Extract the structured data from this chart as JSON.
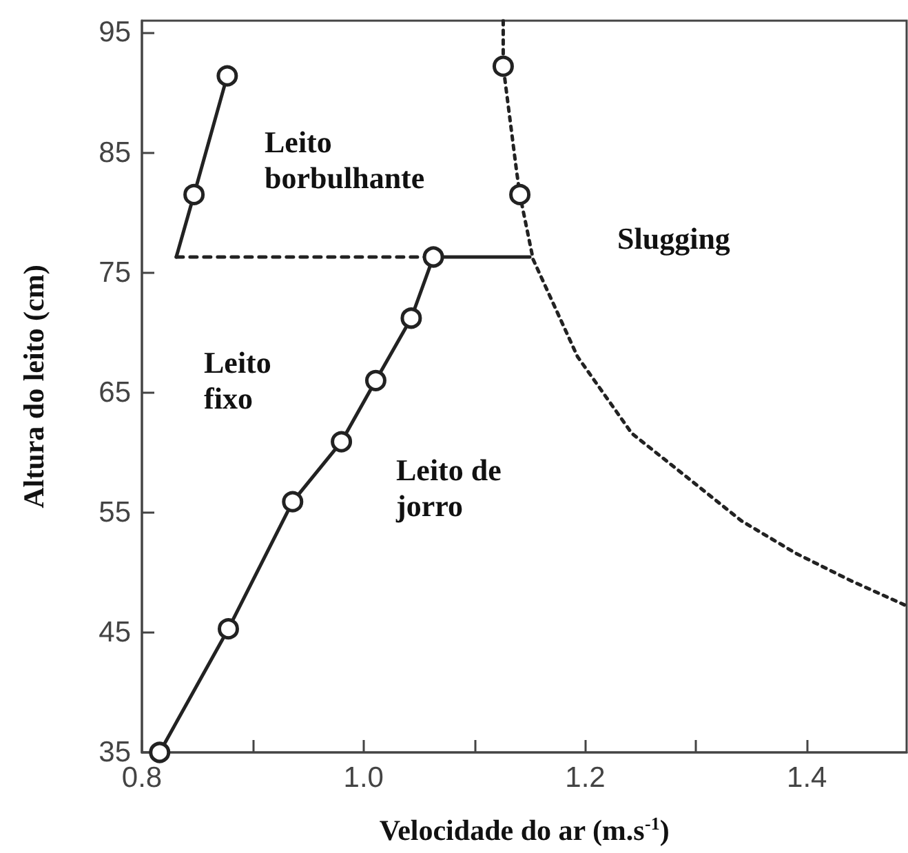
{
  "chart_data": {
    "type": "line",
    "xlabel": "Velocidade do ar (m.s$^{-1}$)",
    "ylabel": "Altura do leito (cm)",
    "xlim": [
      0.8,
      1.49
    ],
    "xticks": [
      {
        "value": 0.8,
        "label": "0.8"
      },
      {
        "value": 0.9,
        "label": null
      },
      {
        "value": 1.0,
        "label": "1.0"
      },
      {
        "value": 1.1,
        "label": null
      },
      {
        "value": 1.2,
        "label": "1.2"
      },
      {
        "value": 1.3,
        "label": null
      },
      {
        "value": 1.4,
        "label": "1.4"
      }
    ],
    "ylim": [
      35,
      96
    ],
    "yticks": [
      35,
      45,
      55,
      65,
      75,
      85,
      95
    ],
    "grid": false,
    "annotations": [
      "Leito borbulhante",
      "Leito fixo",
      "Leito de jorro",
      "Slugging"
    ],
    "series": [
      {
        "color": "#222222",
        "line_style": "solid",
        "marker": "none",
        "x": [
          0.816,
          0.878,
          0.936,
          0.98,
          1.011,
          1.043,
          1.063,
          1.15
        ],
        "values": [
          35,
          45.3,
          55.9,
          60.9,
          66.0,
          71.2,
          76.3,
          76.3
        ]
      },
      {
        "color": "#222222",
        "line_style": "dashed",
        "marker": "none",
        "x": [
          0.831,
          1.063
        ],
        "values": [
          76.3,
          76.3
        ]
      },
      {
        "color": "#222222",
        "line_style": "solid",
        "marker": "none",
        "x": [
          0.831,
          0.847,
          0.877
        ],
        "values": [
          76.3,
          81.5,
          91.4
        ]
      },
      {
        "color": "#222222",
        "line_style": "dotted",
        "marker": "none",
        "x": [
          1.126,
          1.126,
          1.138,
          1.141,
          1.153,
          1.193,
          1.242,
          1.291,
          1.341,
          1.39,
          1.44,
          1.488
        ],
        "values": [
          96,
          92.2,
          83.5,
          81.5,
          76.1,
          68.0,
          61.6,
          58.0,
          54.3,
          51.6,
          49.3,
          47.3
        ]
      },
      {
        "type": "scatter",
        "color": "#222222",
        "marker": "circle",
        "x": [
          0.816,
          0.878,
          0.936,
          0.98,
          1.011,
          1.043,
          1.063,
          0.847,
          0.877,
          1.126,
          1.141
        ],
        "values": [
          35,
          45.3,
          55.9,
          60.9,
          66.0,
          71.2,
          76.3,
          81.5,
          91.4,
          92.2,
          81.5
        ]
      }
    ]
  }
}
